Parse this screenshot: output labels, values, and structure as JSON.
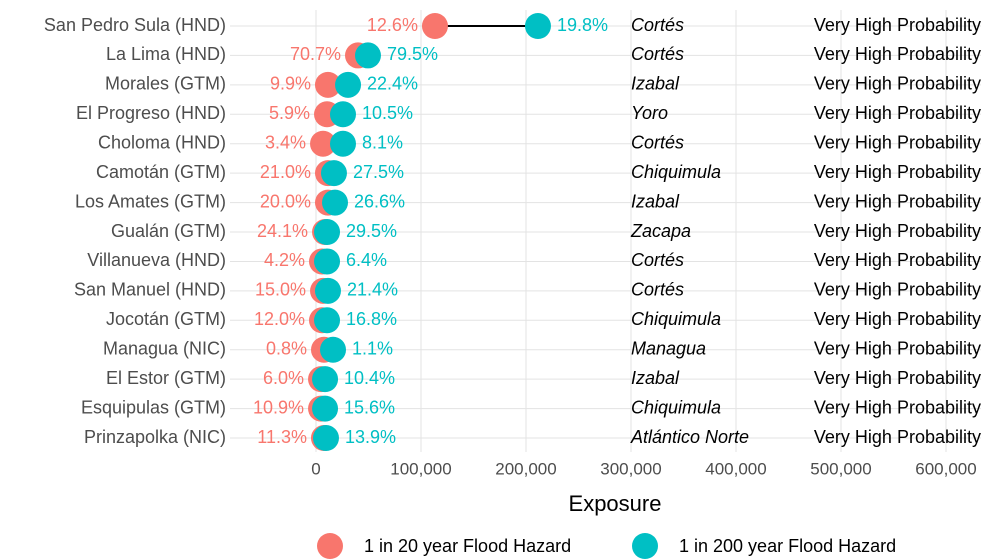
{
  "chart_data": {
    "type": "dumbbell",
    "categories": [
      "San Pedro Sula (HND)",
      "La Lima (HND)",
      "Morales (GTM)",
      "El Progreso (HND)",
      "Choloma (HND)",
      "Camotán (GTM)",
      "Los Amates (GTM)",
      "Gualán (GTM)",
      "Villanueva (HND)",
      "San Manuel (HND)",
      "Jocotán (GTM)",
      "Managua (NIC)",
      "El Estor (GTM)",
      "Esquipulas (GTM)",
      "Prinzapolka (NIC)"
    ],
    "departments": [
      "Cortés",
      "Cortés",
      "Izabal",
      "Yoro",
      "Cortés",
      "Chiquimula",
      "Izabal",
      "Zacapa",
      "Cortés",
      "Cortés",
      "Chiquimula",
      "Managua",
      "Izabal",
      "Chiquimula",
      "Atlántico Norte"
    ],
    "probability": [
      "Very High Probability",
      "Very High Probability",
      "Very High Probability",
      "Very High Probability",
      "Very High Probability",
      "Very High Probability",
      "Very High Probability",
      "Very High Probability",
      "Very High Probability",
      "Very High Probability",
      "Very High Probability",
      "Very High Probability",
      "Very High Probability",
      "Very High Probability",
      "Very High Probability"
    ],
    "series": [
      {
        "name": "1 in 20 year Flood Hazard",
        "color": "#F8766D",
        "values": [
          113300,
          40000,
          11400,
          10500,
          6700,
          11400,
          11400,
          8600,
          5700,
          6700,
          5700,
          7600,
          4800,
          4800,
          7600
        ],
        "share_labels": [
          "12.6%",
          "70.7%",
          "9.9%",
          "5.9%",
          "3.4%",
          "21.0%",
          "20.0%",
          "24.1%",
          "4.2%",
          "15.0%",
          "12.0%",
          "0.8%",
          "6.0%",
          "10.9%",
          "11.3%"
        ]
      },
      {
        "name": "1 in 200 year Flood Hazard",
        "color": "#00BFC4",
        "values": [
          211400,
          49500,
          30500,
          25700,
          25700,
          17100,
          18100,
          10500,
          10500,
          11400,
          10500,
          16200,
          8600,
          8600,
          9500
        ],
        "share_labels": [
          "19.8%",
          "79.5%",
          "22.4%",
          "10.5%",
          "8.1%",
          "27.5%",
          "26.6%",
          "29.5%",
          "6.4%",
          "21.4%",
          "16.8%",
          "1.1%",
          "10.4%",
          "15.6%",
          "13.9%"
        ]
      }
    ],
    "xlabel": "Exposure",
    "xlim": [
      0,
      600000
    ],
    "xticks": [
      0,
      {
        "value": 100000,
        "label": "100,000"
      },
      {
        "value": 200000,
        "label": "200,000"
      },
      {
        "value": 300000,
        "label": "300,000"
      },
      {
        "value": 400000,
        "label": "400,000"
      },
      {
        "value": 500000,
        "label": "500,000"
      },
      {
        "value": 600000,
        "label": "600,000"
      }
    ]
  }
}
